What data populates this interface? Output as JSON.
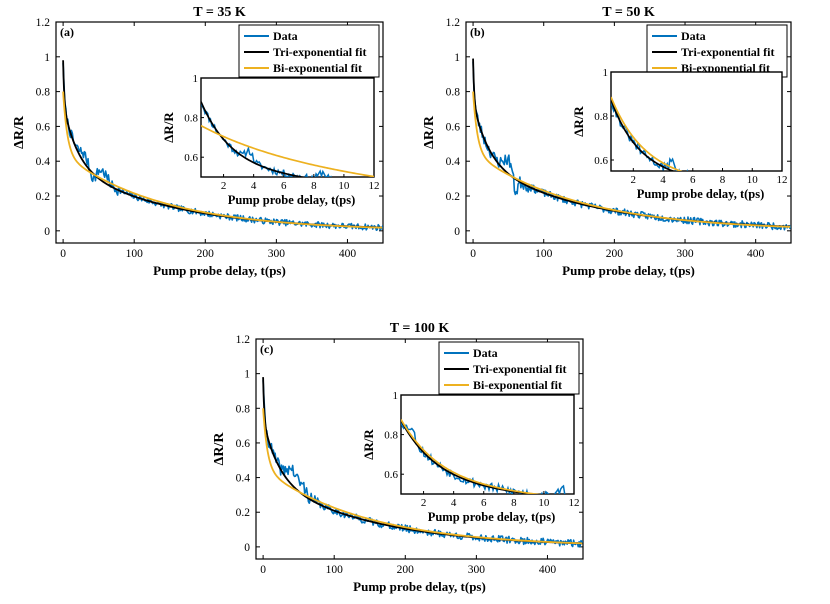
{
  "figure": {
    "panels_note": "three panels of pump-probe transient reflectivity"
  },
  "colors": {
    "data": "#0072BD",
    "tri": "#000000",
    "bi": "#EDB120",
    "axis": "#000000"
  },
  "chart_data": [
    {
      "type": "line",
      "panel_label": "(a)",
      "title": "T = 35 K",
      "xlabel": "Pump probe delay, t(ps)",
      "ylabel": "ΔR/R",
      "xlim": [
        -10,
        450
      ],
      "ylim": [
        -0.07,
        1.2
      ],
      "xticks": [
        0,
        100,
        200,
        300,
        400
      ],
      "yticks": [
        0,
        0.2,
        0.4,
        0.6,
        0.8,
        1,
        1.2
      ],
      "ytick_labels": [
        "0",
        "0.2",
        "0.4",
        "0.6",
        "0.8",
        "1",
        "1.2"
      ],
      "legend": [
        "Data",
        "Tri-exponential fit",
        "Bi-exponential fit"
      ],
      "legend_position": "top-right",
      "tri_fit": {
        "amplitudes": [
          0.25,
          0.35,
          0.38
        ],
        "time_constants_ps": [
          1.5,
          20,
          150
        ]
      },
      "bi_fit": {
        "amplitudes": [
          0.36,
          0.44
        ],
        "time_constants_ps": [
          6,
          140
        ]
      },
      "data_series": {
        "base": "tri_fit",
        "noise_amp": 0.022,
        "seed": 7,
        "bumps": [
          [
            30,
            0.05,
            8
          ],
          [
            55,
            0.06,
            10
          ],
          [
            42,
            -0.04,
            6
          ]
        ]
      },
      "inset": {
        "xlabel": "Pump probe delay, t(ps)",
        "ylabel": "ΔR/R",
        "xlim": [
          0.5,
          12
        ],
        "ylim": [
          0.5,
          1.0
        ],
        "xticks": [
          2,
          4,
          6,
          8,
          10,
          12
        ],
        "yticks": [
          0.6,
          0.8,
          1
        ],
        "ytick_labels": [
          "0.6",
          "0.8",
          "1"
        ],
        "data": {
          "base": "tri",
          "noise_amp": 0.018,
          "seed": 11,
          "bumps": [
            [
              3.7,
              0.05,
              0.3
            ],
            [
              8.6,
              0.04,
              0.4
            ]
          ]
        },
        "tri": {
          "a": [
            0.43,
            0.55
          ],
          "tau": [
            2.0,
            60
          ]
        },
        "bi": {
          "a": [
            0.2,
            0.58
          ],
          "tau": [
            6.0,
            60
          ]
        }
      }
    },
    {
      "type": "line",
      "panel_label": "(b)",
      "title": "T = 50 K",
      "xlabel": "Pump probe delay, t(ps)",
      "ylabel": "ΔR/R",
      "xlim": [
        -10,
        450
      ],
      "ylim": [
        -0.07,
        1.2
      ],
      "xticks": [
        0,
        100,
        200,
        300,
        400
      ],
      "yticks": [
        0,
        0.2,
        0.4,
        0.6,
        0.8,
        1,
        1.2
      ],
      "ytick_labels": [
        "0",
        "0.2",
        "0.4",
        "0.6",
        "0.8",
        "1",
        "1.2"
      ],
      "legend": [
        "Data",
        "Tri-exponential fit",
        "Bi-exponential fit"
      ],
      "legend_position": "top-right",
      "tri_fit": {
        "amplitudes": [
          0.25,
          0.34,
          0.4
        ],
        "time_constants_ps": [
          1.5,
          22,
          160
        ]
      },
      "bi_fit": {
        "amplitudes": [
          0.35,
          0.45
        ],
        "time_constants_ps": [
          6,
          150
        ]
      },
      "data_series": {
        "base": "tri_fit",
        "noise_amp": 0.025,
        "seed": 23,
        "bumps": [
          [
            50,
            0.08,
            10
          ],
          [
            60,
            -0.1,
            4
          ]
        ]
      },
      "inset": {
        "xlabel": "Pump probe delay, t(ps)",
        "ylabel": "ΔR/R",
        "xlim": [
          0.5,
          12
        ],
        "ylim": [
          0.55,
          1.0
        ],
        "xticks": [
          2,
          4,
          6,
          8,
          10,
          12
        ],
        "yticks": [
          0.6,
          0.8,
          1
        ],
        "ytick_labels": [
          "0.6",
          "0.8",
          "1"
        ],
        "data": {
          "base": "tri",
          "noise_amp": 0.02,
          "seed": 31,
          "bumps": [
            [
              4.6,
              0.06,
              0.2
            ]
          ]
        },
        "tri": {
          "a": [
            0.42,
            0.56
          ],
          "tau": [
            1.8,
            60
          ]
        },
        "bi": {
          "a": [
            0.42,
            0.56
          ],
          "tau": [
            2.1,
            60
          ]
        }
      }
    },
    {
      "type": "line",
      "panel_label": "(c)",
      "title": "T = 100 K",
      "xlabel": "Pump probe delay, t(ps)",
      "ylabel": "ΔR/R",
      "xlim": [
        -10,
        450
      ],
      "ylim": [
        -0.07,
        1.2
      ],
      "xticks": [
        0,
        100,
        200,
        300,
        400
      ],
      "yticks": [
        0,
        0.2,
        0.4,
        0.6,
        0.8,
        1,
        1.2
      ],
      "ytick_labels": [
        "0",
        "0.2",
        "0.4",
        "0.6",
        "0.8",
        "1",
        "1.2"
      ],
      "legend": [
        "Data",
        "Tri-exponential fit",
        "Bi-exponential fit"
      ],
      "legend_position": "top-right",
      "tri_fit": {
        "amplitudes": [
          0.25,
          0.33,
          0.4
        ],
        "time_constants_ps": [
          1.5,
          22,
          150
        ]
      },
      "bi_fit": {
        "amplitudes": [
          0.35,
          0.45
        ],
        "time_constants_ps": [
          6,
          145
        ]
      },
      "data_series": {
        "base": "tri_fit",
        "noise_amp": 0.026,
        "seed": 41,
        "bumps": [
          [
            40,
            0.09,
            9
          ],
          [
            55,
            0.05,
            8
          ]
        ]
      },
      "inset": {
        "xlabel": "Pump probe delay, t(ps)",
        "ylabel": "ΔR/R",
        "xlim": [
          0.5,
          12
        ],
        "ylim": [
          0.5,
          1.0
        ],
        "xticks": [
          2,
          4,
          6,
          8,
          10,
          12
        ],
        "yticks": [
          0.6,
          0.8,
          1
        ],
        "ytick_labels": [
          "0.6",
          "0.8",
          "1"
        ],
        "data": {
          "base": "tri",
          "noise_amp": 0.022,
          "seed": 53,
          "bumps": [
            [
              1.2,
              0.05,
              0.3
            ],
            [
              11.2,
              0.05,
              0.3
            ]
          ]
        },
        "tri": {
          "a": [
            0.4,
            0.55
          ],
          "tau": [
            2.4,
            80
          ]
        },
        "bi": {
          "a": [
            0.4,
            0.55
          ],
          "tau": [
            2.6,
            80
          ]
        }
      }
    }
  ]
}
